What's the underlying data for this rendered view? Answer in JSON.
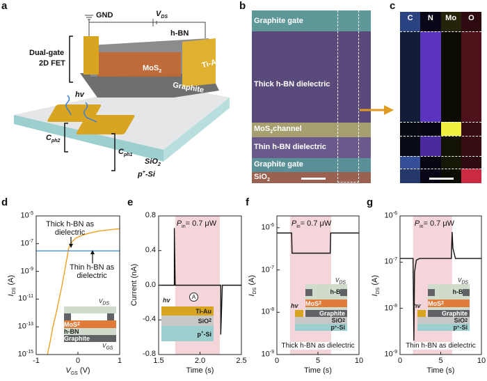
{
  "panels": {
    "a": "a",
    "b": "b",
    "c": "c",
    "d": "d",
    "e": "e",
    "f": "f",
    "g": "g"
  },
  "colors": {
    "gold": "#d9a520",
    "mos2": "#e07b39",
    "hbn": "#cfdccb",
    "graphite": "#606265",
    "sio2": "#c8c8c8",
    "psi": "#9dcfcf",
    "blue": "#4a90d9",
    "orange": "#f0a020",
    "shade": "#f4d6da",
    "arrow": "#e09a20"
  },
  "panel_a": {
    "gnd": "GND",
    "vds": "V",
    "vds_sub": "DS",
    "hbn": "h-BN",
    "dual_gate": "Dual-gate",
    "fet": "2D FET",
    "tiau": "Ti-Au",
    "mos2": "MoS",
    "mos2_sub": "2",
    "graphite": "Graphite",
    "hv": "hv",
    "cph2": "C",
    "cph2_sub": "ph2",
    "cph1": "C",
    "cph1_sub": "ph1",
    "sio2": "SiO",
    "sio2_sub": "2",
    "psi": "p",
    "psi_sup": "+",
    "psi_rest": "-Si"
  },
  "panel_b": {
    "rows": [
      "Graphite gate",
      "Thick h-BN dielectric",
      "MoS",
      "Thin h-BN dielectric",
      "Graphite gate",
      "SiO"
    ],
    "mos2_rest": "channel",
    "sub2": "2"
  },
  "panel_c": {
    "elements": [
      "C",
      "N",
      "Mo",
      "O"
    ],
    "element_colors": [
      "#4a6fd8",
      "#6a3de0",
      "#f0f040",
      "#e0304a"
    ]
  },
  "inset": {
    "mos2": "MoS",
    "sub2": "2",
    "hbn": "h-BN",
    "graphite": "Graphite",
    "v": "V",
    "vds_sub": "DS",
    "vgs_sub": "GS",
    "tiau": "Ti-Au",
    "sio2": "SiO",
    "psi": "p",
    "psi_sup": "+",
    "psi_rest": "-Si",
    "hv": "hv",
    "ammeter": "A"
  },
  "chart_data": [
    {
      "panel": "d",
      "type": "line",
      "xlabel": "V",
      "xlabel_sub": "GS",
      "xlabel_unit": " (V)",
      "ylabel": "I",
      "ylabel_sub": "DS",
      "ylabel_unit": " (A)",
      "yscale": "log",
      "xlim": [
        -1,
        1
      ],
      "ylim": [
        1e-15,
        1e-05
      ],
      "xticks": [
        "-1",
        "0",
        "1"
      ],
      "yticks": [
        "10",
        "10",
        "10",
        "10",
        "10",
        "10"
      ],
      "ytick_exp": [
        "-15",
        "-13",
        "-11",
        "-9",
        "-7",
        "-5"
      ],
      "series": [
        {
          "name": "Thick h-BN as dielectric",
          "color": "#f0a020",
          "x": [
            -0.73,
            -0.66,
            -0.6,
            -0.52,
            -0.45,
            -0.38,
            -0.32,
            -0.26,
            -0.22,
            -0.15,
            -0.05,
            0.1,
            0.3,
            0.5,
            0.75,
            1.0
          ],
          "y": [
            1e-15,
            1e-14,
            1e-13,
            1e-12,
            1e-11,
            1e-10,
            1e-09,
            1e-08,
            5e-08,
            1.3e-07,
            2.5e-07,
            4e-07,
            6e-07,
            8e-07,
            1e-06,
            1.2e-06
          ]
        },
        {
          "name": "Thin h-BN as dielectric",
          "color": "#4a90d9",
          "x": [
            -1,
            -0.5,
            0,
            0.5,
            1
          ],
          "y": [
            3e-08,
            3e-08,
            3e-08,
            3e-08,
            3e-08
          ]
        }
      ],
      "annotations": {
        "thick": [
          "Thick h-BN as",
          "dielectric"
        ],
        "thin": [
          "Thin h-BN as",
          "dielectric"
        ]
      }
    },
    {
      "panel": "e",
      "type": "line",
      "xlabel": "Time (s)",
      "ylabel": "Current (nA)",
      "xlim": [
        1.5,
        2.5
      ],
      "ylim": [
        -0.8,
        0.8
      ],
      "xticks": [
        "1.5",
        "2.0",
        "2.5"
      ],
      "yticks": [
        "-0.8",
        "-0.4",
        "0.0",
        "0.4",
        "0.8"
      ],
      "illumination": [
        1.7,
        2.24
      ],
      "pin": "P",
      "pin_sub": "in",
      "pin_val": "= 0.7 μW",
      "series": [
        {
          "color": "#111",
          "x": [
            1.5,
            1.69,
            1.69,
            1.7,
            2.24,
            2.25,
            2.25,
            2.27,
            2.5
          ],
          "y": [
            0,
            0,
            0.66,
            0,
            0,
            0,
            -0.57,
            0,
            0
          ]
        }
      ]
    },
    {
      "panel": "f",
      "type": "line",
      "xlabel": "Time (s)",
      "ylabel": "I",
      "ylabel_sub": "DS",
      "ylabel_unit": " (A)",
      "yscale": "log",
      "xlim": [
        0,
        10
      ],
      "ylim": [
        1e-09,
        1.9e-06
      ],
      "xticks": [
        "0",
        "5",
        "10"
      ],
      "yticks": [
        "10",
        "10",
        "10",
        "10"
      ],
      "ytick_exp": [
        "-9",
        "-8",
        "-7",
        "-6"
      ],
      "illumination": [
        1.6,
        6.6
      ],
      "pin": "P",
      "pin_sub": "in",
      "pin_val": "= 0.7 μW",
      "caption": "Thick h-BN as dielectric",
      "series": [
        {
          "color": "#111",
          "x": [
            0,
            1.8,
            1.85,
            6.5,
            6.55,
            10
          ],
          "y": [
            7.5e-07,
            7.5e-07,
            2.5e-07,
            2.5e-07,
            7.5e-07,
            7.5e-07
          ]
        }
      ]
    },
    {
      "panel": "g",
      "type": "line",
      "xlabel": "Time (s)",
      "ylabel": "I",
      "ylabel_sub": "DS",
      "ylabel_unit": " (A)",
      "yscale": "log",
      "xlim": [
        0,
        10
      ],
      "ylim": [
        1e-09,
        1e-06
      ],
      "xticks": [
        "0",
        "5",
        "10"
      ],
      "yticks": [
        "10",
        "10",
        "10",
        "10"
      ],
      "ytick_exp": [
        "-9",
        "-8",
        "-7",
        "-6"
      ],
      "illumination": [
        1.6,
        6.4
      ],
      "pin": "P",
      "pin_sub": "in",
      "pin_val": "= 0.7 μW",
      "caption": "Thin h-BN as dielectric",
      "series": [
        {
          "color": "#111",
          "x": [
            0,
            1.6,
            1.7,
            1.78,
            2.0,
            2.4,
            6.3,
            6.4,
            6.5,
            6.8,
            10
          ],
          "y": [
            1.2e-07,
            1.2e-07,
            2e-09,
            6e-08,
            1.1e-07,
            1.2e-07,
            1.2e-07,
            4.5e-07,
            2e-07,
            1.2e-07,
            1.2e-07
          ]
        }
      ]
    }
  ]
}
